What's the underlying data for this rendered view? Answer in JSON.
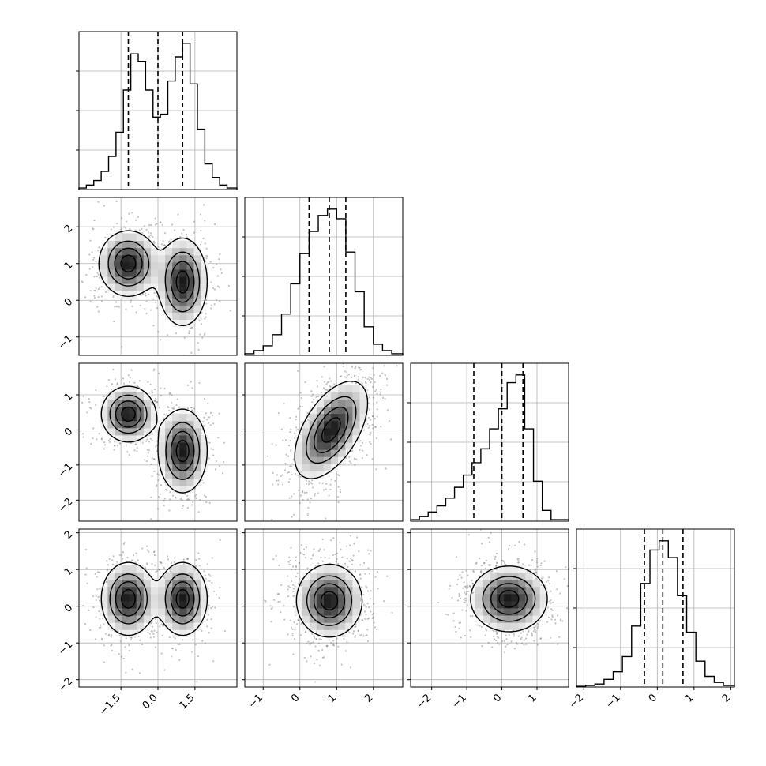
{
  "chart_data": {
    "type": "corner",
    "n_params": 4,
    "grid": true,
    "params": [
      {
        "index": 0,
        "range": [
          -3.2,
          3.2
        ],
        "ticks": [
          -1.5,
          0.0,
          1.5
        ],
        "tick_labels": [
          "−1.5",
          "0.0",
          "1.5"
        ],
        "quantiles": [
          -1.2,
          0.0,
          1.0
        ],
        "hist": {
          "bin_edges": [
            -3.2,
            -2.9,
            -2.6,
            -2.3,
            -2.0,
            -1.7,
            -1.4,
            -1.1,
            -0.8,
            -0.5,
            -0.2,
            0.1,
            0.4,
            0.7,
            1.0,
            1.3,
            1.6,
            1.9,
            2.2,
            2.5,
            2.8,
            3.2
          ],
          "density": [
            0.01,
            0.03,
            0.06,
            0.12,
            0.22,
            0.38,
            0.66,
            0.9,
            0.85,
            0.66,
            0.48,
            0.5,
            0.72,
            0.88,
            0.97,
            0.7,
            0.4,
            0.17,
            0.08,
            0.03,
            0.01
          ]
        }
      },
      {
        "index": 1,
        "range": [
          -1.5,
          2.8
        ],
        "ticks": [
          -1,
          0,
          1,
          2
        ],
        "tick_labels": [
          "−1",
          "0",
          "1",
          "2"
        ],
        "quantiles": [
          0.25,
          0.8,
          1.25
        ],
        "hist": {
          "bin_edges": [
            -1.5,
            -1.25,
            -1.0,
            -0.75,
            -0.5,
            -0.25,
            0.0,
            0.25,
            0.5,
            0.75,
            1.0,
            1.25,
            1.5,
            1.75,
            2.0,
            2.25,
            2.5,
            2.8
          ],
          "density": [
            0.01,
            0.03,
            0.06,
            0.13,
            0.26,
            0.45,
            0.64,
            0.78,
            0.88,
            0.92,
            0.86,
            0.65,
            0.4,
            0.18,
            0.07,
            0.03,
            0.01
          ]
        }
      },
      {
        "index": 2,
        "range": [
          -2.6,
          1.9
        ],
        "ticks": [
          -2,
          -1,
          0,
          1
        ],
        "tick_labels": [
          "−2",
          "−1",
          "0",
          "1"
        ],
        "quantiles": [
          -0.8,
          0.0,
          0.6
        ],
        "hist": {
          "bin_edges": [
            -2.6,
            -2.35,
            -2.1,
            -1.85,
            -1.6,
            -1.35,
            -1.1,
            -0.85,
            -0.6,
            -0.35,
            -0.1,
            0.15,
            0.4,
            0.65,
            0.9,
            1.15,
            1.4,
            1.9
          ],
          "density": [
            0.01,
            0.03,
            0.06,
            0.1,
            0.15,
            0.22,
            0.3,
            0.38,
            0.47,
            0.6,
            0.73,
            0.9,
            0.95,
            0.6,
            0.26,
            0.07,
            0.01
          ]
        }
      },
      {
        "index": 3,
        "range": [
          -2.2,
          2.1
        ],
        "ticks": [
          -2,
          -1,
          0,
          1,
          2
        ],
        "tick_labels": [
          "−2",
          "−1",
          "0",
          "1",
          "2"
        ],
        "quantiles": [
          -0.35,
          0.15,
          0.7
        ],
        "hist": {
          "bin_edges": [
            -2.2,
            -1.95,
            -1.7,
            -1.45,
            -1.2,
            -0.95,
            -0.7,
            -0.45,
            -0.2,
            0.05,
            0.3,
            0.55,
            0.8,
            1.05,
            1.3,
            1.55,
            1.8,
            2.1
          ],
          "density": [
            0.005,
            0.01,
            0.02,
            0.05,
            0.1,
            0.2,
            0.4,
            0.68,
            0.9,
            0.96,
            0.85,
            0.6,
            0.36,
            0.17,
            0.07,
            0.03,
            0.01
          ]
        }
      }
    ],
    "pairs": [
      {
        "row": 1,
        "col": 0,
        "modes": [
          {
            "x": -1.2,
            "y": 1.0,
            "sx": 0.6,
            "sy": 0.45,
            "w": 1.0
          },
          {
            "x": 1.0,
            "y": 0.5,
            "sx": 0.5,
            "sy": 0.6,
            "w": 1.0
          }
        ]
      },
      {
        "row": 2,
        "col": 0,
        "modes": [
          {
            "x": -1.2,
            "y": 0.45,
            "sx": 0.55,
            "sy": 0.4,
            "w": 1.0
          },
          {
            "x": 1.0,
            "y": -0.6,
            "sx": 0.5,
            "sy": 0.6,
            "w": 1.0
          }
        ]
      },
      {
        "row": 2,
        "col": 1,
        "modes": [
          {
            "x": 0.85,
            "y": 0.0,
            "sx": 0.5,
            "sy": 0.7,
            "w": 1.0,
            "rho": 0.55
          }
        ]
      },
      {
        "row": 3,
        "col": 0,
        "modes": [
          {
            "x": -1.2,
            "y": 0.2,
            "sx": 0.55,
            "sy": 0.5,
            "w": 1.0
          },
          {
            "x": 1.0,
            "y": 0.2,
            "sx": 0.5,
            "sy": 0.5,
            "w": 1.0
          }
        ]
      },
      {
        "row": 3,
        "col": 1,
        "modes": [
          {
            "x": 0.8,
            "y": 0.15,
            "sx": 0.45,
            "sy": 0.5,
            "w": 1.0
          }
        ]
      },
      {
        "row": 3,
        "col": 2,
        "modes": [
          {
            "x": 0.2,
            "y": 0.2,
            "sx": 0.55,
            "sy": 0.45,
            "w": 1.0
          }
        ]
      }
    ]
  }
}
